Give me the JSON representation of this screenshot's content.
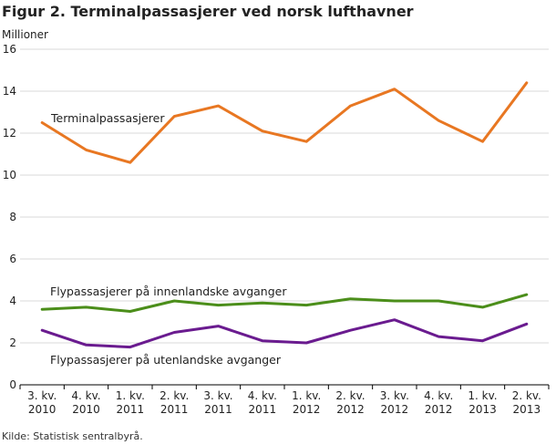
{
  "chart_data": {
    "type": "line",
    "title": "Figur 2. Terminalpassasjerer ved norsk lufthavner",
    "ylabel": "Millioner",
    "xlabel": "",
    "source": "Kilde: Statistisk sentralbyrå.",
    "ylim": [
      0,
      16
    ],
    "yticks": [
      "0",
      "2",
      "4",
      "6",
      "8",
      "10",
      "12",
      "14",
      "16"
    ],
    "grid": true,
    "categories": [
      [
        "3. kv.",
        "2010"
      ],
      [
        "4. kv.",
        "2010"
      ],
      [
        "1. kv.",
        "2011"
      ],
      [
        "2. kv.",
        "2011"
      ],
      [
        "3. kv.",
        "2011"
      ],
      [
        "4. kv.",
        "2011"
      ],
      [
        "1. kv.",
        "2012"
      ],
      [
        "2. kv.",
        "2012"
      ],
      [
        "3. kv.",
        "2012"
      ],
      [
        "4. kv.",
        "2012"
      ],
      [
        "1. kv.",
        "2013"
      ],
      [
        "2. kv.",
        "2013"
      ]
    ],
    "series": [
      {
        "name": "Terminalpassasjerer",
        "color": "#e87722",
        "values": [
          12.5,
          11.2,
          10.6,
          12.8,
          13.3,
          12.1,
          11.6,
          13.3,
          14.1,
          12.6,
          11.6,
          14.4
        ]
      },
      {
        "name": "Flypassasjerer på innenlandske avganger",
        "color": "#4b8e1a",
        "values": [
          3.6,
          3.7,
          3.5,
          4.0,
          3.8,
          3.9,
          3.8,
          4.1,
          4.0,
          4.0,
          3.7,
          4.3
        ]
      },
      {
        "name": "Flypassasjerer på utenlandske avganger",
        "color": "#6a1b8f",
        "values": [
          2.6,
          1.9,
          1.8,
          2.5,
          2.8,
          2.1,
          2.0,
          2.6,
          3.1,
          2.3,
          2.1,
          2.9
        ]
      }
    ]
  }
}
